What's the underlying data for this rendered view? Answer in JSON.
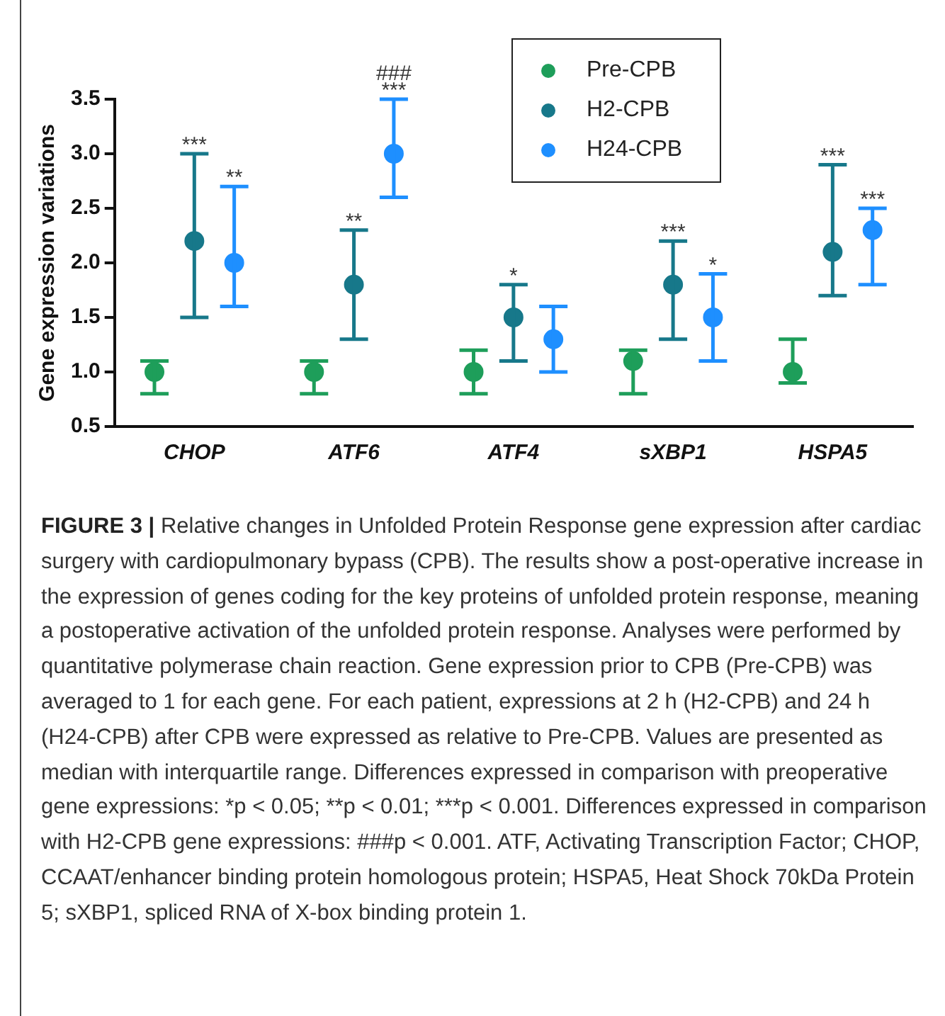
{
  "chart_data": {
    "type": "scatter",
    "title": "FIGURE 3 |",
    "ylabel": "Gene expression variations",
    "categories": [
      "CHOP",
      "ATF6",
      "ATF4",
      "sXBP1",
      "HSPA5"
    ],
    "series": [
      {
        "name": "Pre-CPB",
        "color": "#1e9e5a",
        "values": [
          1.0,
          1.0,
          1.0,
          1.1,
          1.0
        ],
        "errors": [
          [
            0.8,
            1.1
          ],
          [
            0.8,
            1.1
          ],
          [
            0.8,
            1.2
          ],
          [
            0.8,
            1.2
          ],
          [
            0.9,
            1.3
          ]
        ]
      },
      {
        "name": "H2-CPB",
        "color": "#17788a",
        "values": [
          2.2,
          1.8,
          1.5,
          1.8,
          2.1
        ],
        "errors": [
          [
            1.5,
            3.0
          ],
          [
            1.3,
            2.3
          ],
          [
            1.1,
            1.8
          ],
          [
            1.3,
            2.2
          ],
          [
            1.7,
            2.9
          ]
        ]
      },
      {
        "name": "H24-CPB",
        "color": "#1e8fff",
        "values": [
          2.0,
          3.0,
          1.3,
          1.5,
          2.3
        ],
        "errors": [
          [
            1.6,
            2.7
          ],
          [
            2.6,
            3.5
          ],
          [
            1.0,
            1.6
          ],
          [
            1.1,
            1.9
          ],
          [
            1.8,
            2.5
          ]
        ]
      }
    ],
    "ylim": [
      0.5,
      3.5
    ],
    "yticks": [
      0.5,
      {
        "value": 1,
        "label": "1.0"
      },
      1.5,
      {
        "value": 2,
        "label": "2.0"
      },
      2.5,
      {
        "value": 3,
        "label": "3.0"
      },
      3.5
    ],
    "grid": false,
    "legend": "top right",
    "marker": "circle",
    "annotations": [
      "Relative changes in Unfolded Protein Response gene expression after cardiac surgery with cardiopulmonary bypass (CPB). The results show a post-operative increase in the expression of genes coding for the key proteins of unfolded protein response, meaning a postoperative activation of the unfolded protein response. Analyses were performed by quantitative polymerase chain reaction. Gene expression prior to CPB (Pre-CPB) was averaged to 1 for each gene. For each patient, expressions at 2 h (H2-CPB) and 24 h (H24-CPB) after CPB were expressed as relative to Pre-CPB. Values are presented as median with interquartile range. Differences expressed in comparison with preoperative gene expressions: *p < 0.05; **p < 0.01; ***p < 0.001. Differences expressed in comparison with H2-CPB gene expressions: ###p < 0.001. ATF, Activating Transcription Factor; CHOP, CCAAT/enhancer binding protein homologous protein; HSPA5, Heat Shock 70kDa Protein 5; sXBP1, spliced RNA of X-box binding protein 1.",
      "***",
      "###",
      {
        "text": "***",
        "x": "CHOP",
        "y": 3.0
      },
      {
        "text": "**",
        "x": "CHOP",
        "y": 2.7
      },
      {
        "text": "**",
        "x": "ATF6",
        "y": 2.3
      },
      {
        "text": "*",
        "x": "ATF4",
        "y": 1.8
      },
      {
        "text": "***",
        "x": "sXBP1",
        "y": 2.2
      },
      {
        "text": "*",
        "x": "sXBP1",
        "y": 1.9
      },
      {
        "text": "***",
        "x": "HSPA5",
        "y": 2.9
      },
      {
        "text": "***",
        "x": "HSPA5",
        "y": 2.5
      }
    ]
  }
}
